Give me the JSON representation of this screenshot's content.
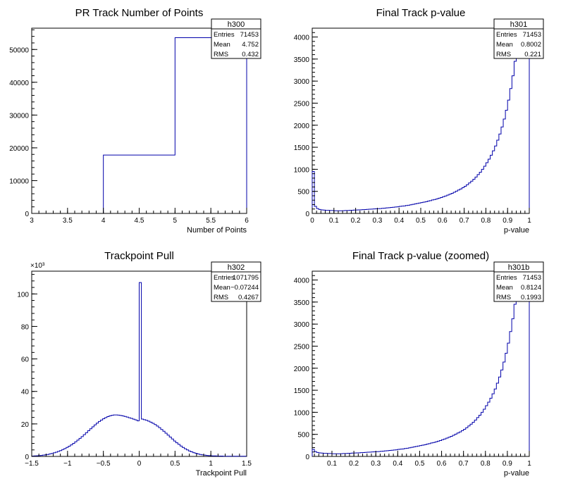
{
  "chart_data": [
    {
      "type": "bar",
      "title": "PR Track Number of Points",
      "xlabel": "Number of Points",
      "ylabel": "",
      "xlim": [
        3,
        6
      ],
      "ylim": [
        0,
        56500
      ],
      "xticks": [
        "3",
        "3.5",
        "4",
        "4.5",
        "5",
        "5.5",
        "6"
      ],
      "yticks": [
        "0",
        "10000",
        "20000",
        "30000",
        "40000",
        "50000"
      ],
      "y_exponent": "",
      "bin_edges": [
        4,
        5,
        6
      ],
      "values": [
        17800,
        53600
      ],
      "line_color": "#0000aa",
      "grid": false,
      "stats": {
        "name": "h300",
        "rows": [
          [
            "Entries",
            "71453"
          ],
          [
            "Mean",
            "4.752"
          ],
          [
            "RMS",
            "0.432"
          ]
        ]
      }
    },
    {
      "type": "bar",
      "title": "Final Track p-value",
      "xlabel": "p-value",
      "ylabel": "",
      "xlim": [
        0,
        1
      ],
      "ylim": [
        0,
        4200
      ],
      "xticks": [
        "0",
        "0.1",
        "0.2",
        "0.3",
        "0.4",
        "0.5",
        "0.6",
        "0.7",
        "0.8",
        "0.9",
        "1"
      ],
      "yticks": [
        "0",
        "500",
        "1000",
        "1500",
        "2000",
        "2500",
        "3000",
        "3500",
        "4000"
      ],
      "y_exponent": "",
      "bin_width": 0.01,
      "x_start": 0,
      "values": [
        950,
        160,
        110,
        90,
        80,
        75,
        70,
        70,
        65,
        65,
        60,
        60,
        60,
        60,
        62,
        65,
        65,
        70,
        72,
        75,
        78,
        80,
        82,
        85,
        88,
        92,
        95,
        98,
        102,
        105,
        108,
        110,
        115,
        120,
        125,
        130,
        135,
        140,
        145,
        150,
        160,
        165,
        170,
        180,
        185,
        195,
        205,
        215,
        225,
        235,
        245,
        255,
        265,
        280,
        290,
        305,
        315,
        330,
        345,
        360,
        380,
        395,
        415,
        435,
        455,
        480,
        505,
        530,
        555,
        585,
        615,
        650,
        690,
        730,
        775,
        825,
        880,
        935,
        1000,
        1070,
        1150,
        1230,
        1320,
        1420,
        1530,
        1660,
        1800,
        1960,
        2140,
        2340,
        2570,
        2830,
        3120,
        3450,
        3600,
        3600,
        3600,
        3600,
        3600,
        3600
      ],
      "line_color": "#0000aa",
      "grid": false,
      "stats": {
        "name": "h301",
        "rows": [
          [
            "Entries",
            "71453"
          ],
          [
            "Mean",
            "0.8002"
          ],
          [
            "RMS",
            "0.221"
          ]
        ]
      }
    },
    {
      "type": "bar",
      "title": "Trackpoint Pull",
      "xlabel": "Trackpoint Pull",
      "ylabel": "",
      "xlim": [
        -1.5,
        1.5
      ],
      "ylim": [
        0,
        114
      ],
      "xticks": [
        "−1.5",
        "−1",
        "−0.5",
        "0",
        "0.5",
        "1",
        "1.5"
      ],
      "yticks": [
        "0",
        "20",
        "40",
        "60",
        "80",
        "100"
      ],
      "y_exponent": "×10³",
      "bin_width": 0.03,
      "x_start": -1.5,
      "values": [
        0.2,
        0.3,
        0.4,
        0.5,
        0.6,
        0.8,
        1.0,
        1.2,
        1.5,
        1.8,
        2.2,
        2.6,
        3.1,
        3.6,
        4.2,
        4.8,
        5.5,
        6.3,
        7.1,
        8.0,
        9.0,
        10.0,
        11.1,
        12.2,
        13.4,
        14.6,
        15.8,
        17.0,
        18.2,
        19.4,
        20.5,
        21.5,
        22.4,
        23.2,
        23.9,
        24.5,
        25.0,
        25.3,
        25.5,
        25.5,
        25.4,
        25.2,
        24.9,
        24.6,
        24.2,
        23.8,
        23.4,
        22.9,
        22.5,
        21.9,
        107.0,
        23.0,
        22.6,
        22.2,
        21.7,
        21.1,
        20.4,
        19.6,
        18.7,
        17.7,
        16.6,
        15.5,
        14.3,
        13.1,
        11.9,
        10.7,
        9.5,
        8.4,
        7.4,
        6.4,
        5.5,
        4.7,
        4.0,
        3.3,
        2.8,
        2.3,
        1.9,
        1.5,
        1.2,
        1.0,
        0.8,
        0.6,
        0.5,
        0.4,
        0.3,
        0.3,
        0.2,
        0.2,
        0.2,
        0.1,
        0.1,
        0.1,
        0.1,
        0.1,
        0.1,
        0.1,
        0.1,
        0.1,
        0.1,
        0.1
      ],
      "line_color": "#0000aa",
      "grid": false,
      "stats": {
        "name": "h302",
        "rows": [
          [
            "Entries",
            "1071795"
          ],
          [
            "Mean",
            "−0.07244"
          ],
          [
            "RMS",
            "0.4267"
          ]
        ]
      }
    },
    {
      "type": "bar",
      "title": "Final Track p-value (zoomed)",
      "xlabel": "p-value",
      "ylabel": "",
      "xlim": [
        0.01,
        1
      ],
      "ylim": [
        0,
        4200
      ],
      "xticks": [
        "",
        "0.1",
        "0.2",
        "0.3",
        "0.4",
        "0.5",
        "0.6",
        "0.7",
        "0.8",
        "0.9",
        "1"
      ],
      "yticks": [
        "0",
        "500",
        "1000",
        "1500",
        "2000",
        "2500",
        "3000",
        "3500",
        "4000"
      ],
      "y_exponent": "",
      "bin_width": 0.01,
      "x_start": 0.01,
      "values": [
        160,
        110,
        90,
        80,
        75,
        70,
        70,
        65,
        65,
        60,
        60,
        60,
        60,
        62,
        65,
        65,
        70,
        72,
        75,
        78,
        80,
        82,
        85,
        88,
        92,
        95,
        98,
        102,
        105,
        108,
        110,
        115,
        120,
        125,
        130,
        135,
        140,
        145,
        150,
        160,
        165,
        170,
        180,
        185,
        195,
        205,
        215,
        225,
        235,
        245,
        255,
        265,
        280,
        290,
        305,
        315,
        330,
        345,
        360,
        380,
        395,
        415,
        435,
        455,
        480,
        505,
        530,
        555,
        585,
        615,
        650,
        690,
        730,
        775,
        825,
        880,
        935,
        1000,
        1070,
        1150,
        1230,
        1320,
        1420,
        1530,
        1660,
        1800,
        1960,
        2140,
        2340,
        2570,
        2830,
        3120,
        3450,
        3600,
        3600,
        3600,
        3600,
        3600,
        3600
      ],
      "line_color": "#0000aa",
      "grid": false,
      "stats": {
        "name": "h301b",
        "rows": [
          [
            "Entries",
            "71453"
          ],
          [
            "Mean",
            "0.8124"
          ],
          [
            "RMS",
            "0.1993"
          ]
        ]
      }
    }
  ]
}
